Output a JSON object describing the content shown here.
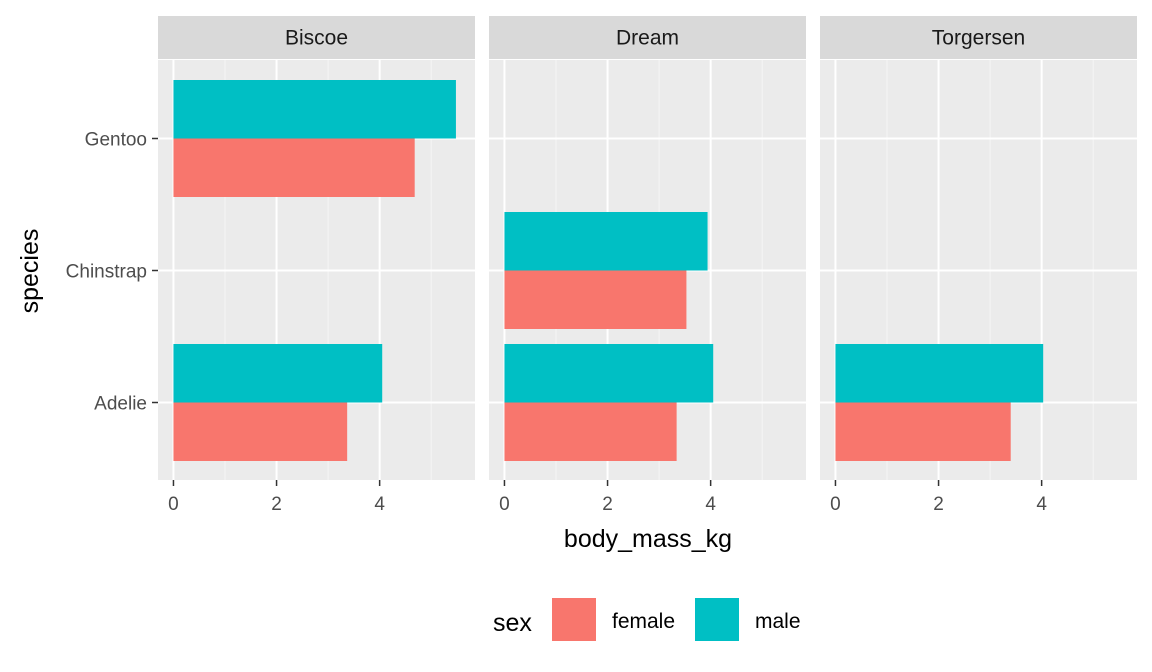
{
  "chart_data": {
    "type": "bar",
    "orientation": "horizontal",
    "layout": "faceted",
    "facets": [
      "Biscoe",
      "Dream",
      "Torgersen"
    ],
    "categories": [
      "Adelie",
      "Chinstrap",
      "Gentoo"
    ],
    "xlabel": "body_mass_kg",
    "ylabel": "species",
    "xlim": [
      -0.3,
      5.85
    ],
    "xticks": [
      0,
      2,
      4
    ],
    "xtick_labels": [
      "0",
      "2",
      "4"
    ],
    "grid": true,
    "legend": {
      "title": "sex",
      "position": "bottom",
      "entries": [
        {
          "name": "female",
          "color": "#F8766D"
        },
        {
          "name": "male",
          "color": "#00BFC4"
        }
      ]
    },
    "series": [
      {
        "name": "female",
        "color": "#F8766D",
        "values": {
          "Biscoe": [
            3.37,
            null,
            4.68
          ],
          "Dream": [
            3.34,
            3.53,
            null
          ],
          "Torgersen": [
            3.4,
            null,
            null
          ]
        }
      },
      {
        "name": "male",
        "color": "#00BFC4",
        "values": {
          "Biscoe": [
            4.05,
            null,
            5.48
          ],
          "Dream": [
            4.05,
            3.94,
            null
          ],
          "Torgersen": [
            4.03,
            null,
            null
          ]
        }
      }
    ]
  },
  "colors": {
    "panel_bg": "#EBEBEB",
    "strip_bg": "#D9D9D9",
    "grid_major": "#FFFFFF",
    "grid_minor": "#F5F5F5"
  }
}
